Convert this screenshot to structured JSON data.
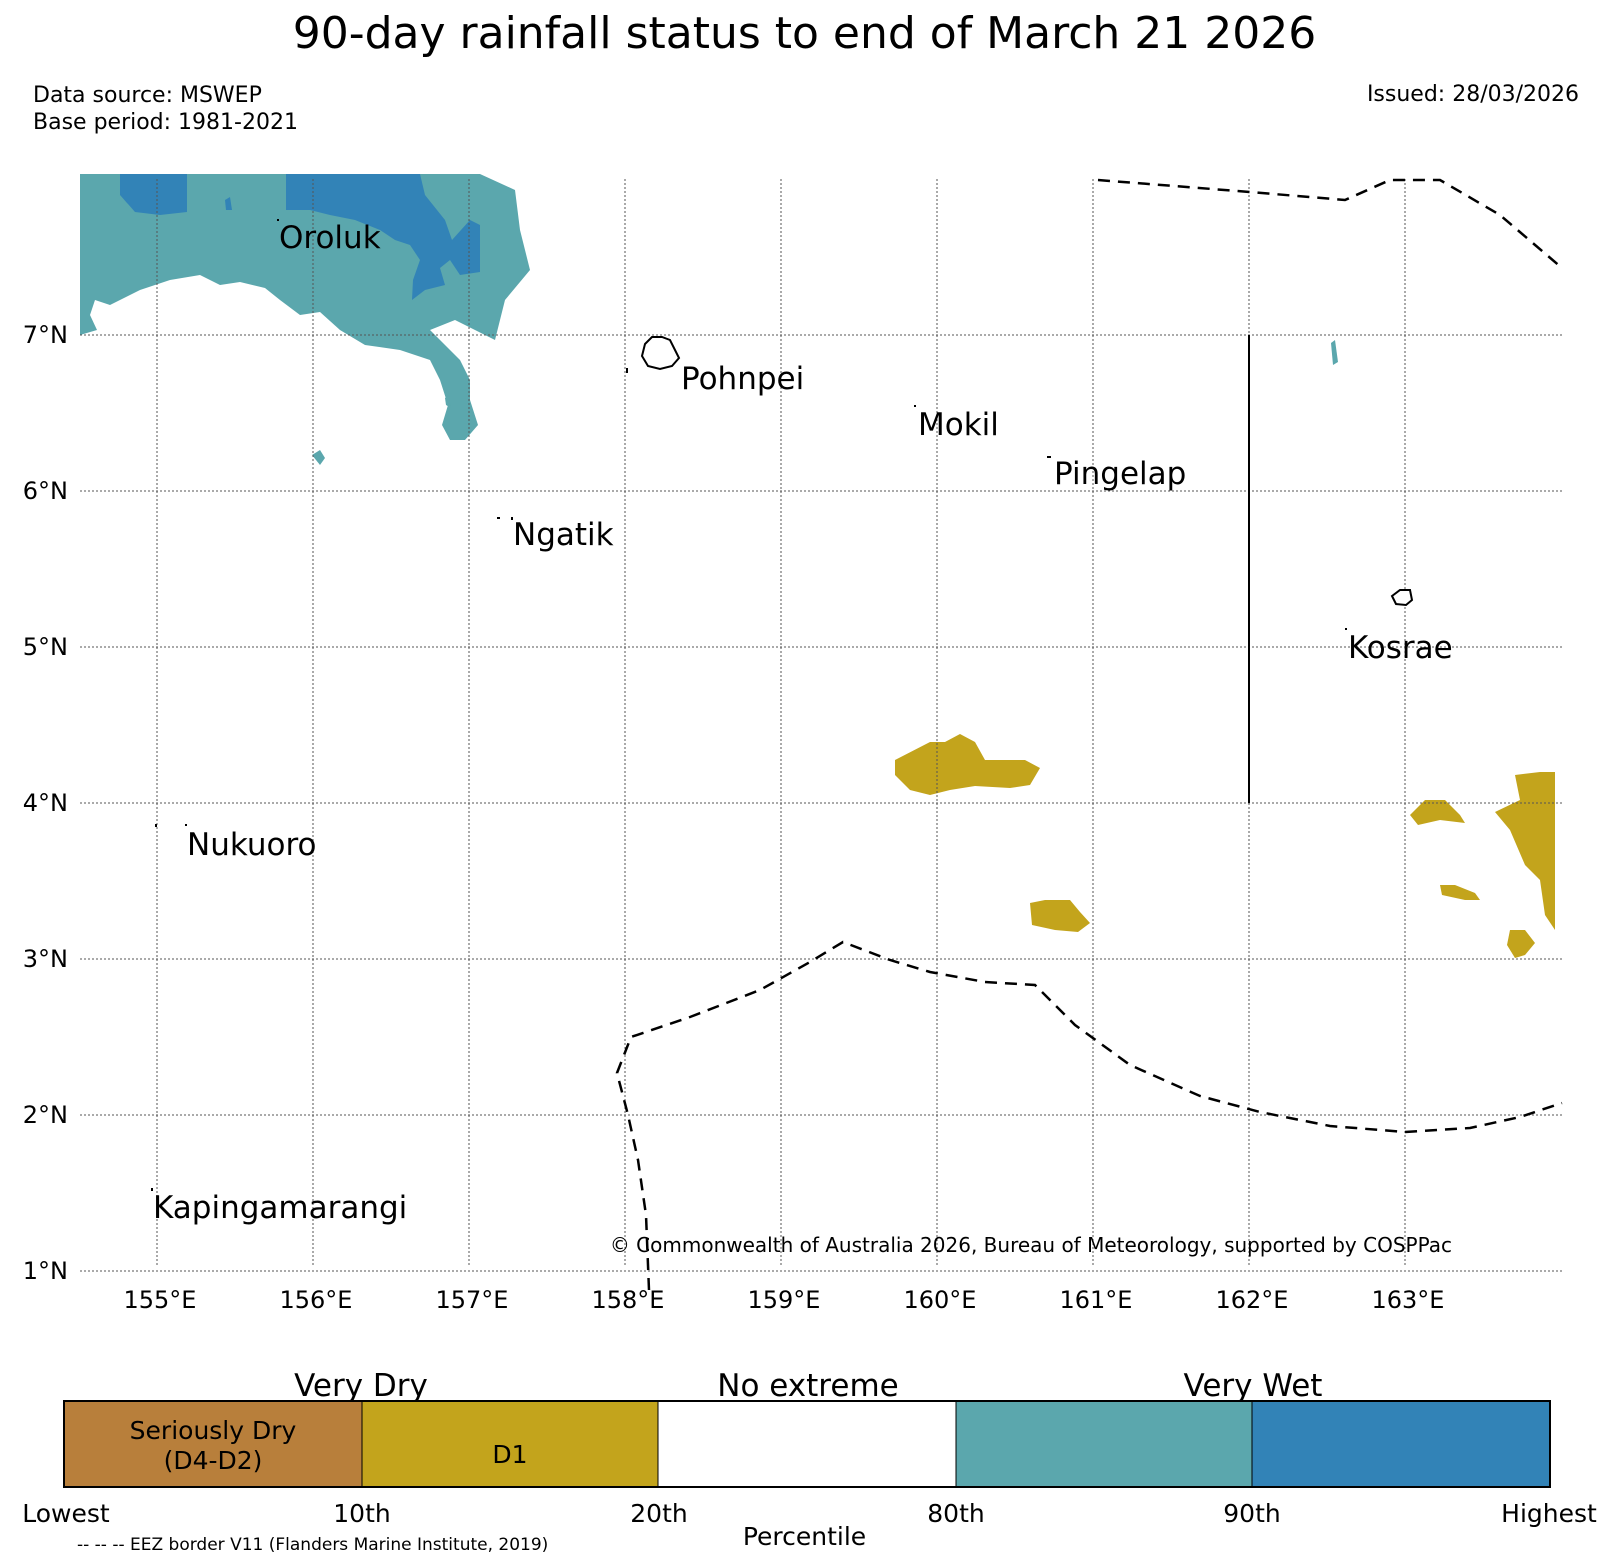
{
  "title": "90-day rainfall status to end of March 21 2026",
  "source": {
    "data_source": "Data source: MSWEP",
    "base_period": "Base period: 1981-2021"
  },
  "issued": "Issued: 28/03/2026",
  "map": {
    "lat_ticks": [
      "7°N",
      "6°N",
      "5°N",
      "4°N",
      "3°N",
      "2°N",
      "1°N"
    ],
    "lon_ticks": [
      "155°E",
      "156°E",
      "157°E",
      "158°E",
      "159°E",
      "160°E",
      "161°E",
      "162°E",
      "163°E"
    ],
    "places": [
      "Oroluk",
      "Pohnpei",
      "Mokil",
      "Pingelap",
      "Ngatik",
      "Kosrae",
      "Nukuoro",
      "Kapingamarangi"
    ],
    "credit": "© Commonwealth of Australia 2026, Bureau of Meteorology, supported by COSPPac",
    "colors": {
      "very_wet": "#3283b7",
      "wet": "#5ba7ad",
      "d1": "#c3a41c",
      "serious_dry": "#b87f3b"
    }
  },
  "legend": {
    "group_labels": [
      "Very Dry",
      "No extreme",
      "Very Wet"
    ],
    "segments": [
      {
        "label_line1": "Seriously Dry",
        "label_line2": "(D4-D2)",
        "color": "#b87f3b"
      },
      {
        "label": "D1",
        "color": "#c3a41c"
      },
      {
        "label": "",
        "color": "#ffffff"
      },
      {
        "label": "",
        "color": "#5ba7ad"
      },
      {
        "label": "",
        "color": "#3283b7"
      }
    ],
    "percentile_labels": [
      "Lowest",
      "10th",
      "20th",
      "80th",
      "90th",
      "Highest"
    ],
    "axis_label": "Percentile"
  },
  "eez_note": "-- -- -- EEZ border V11 (Flanders Marine Institute, 2019)"
}
